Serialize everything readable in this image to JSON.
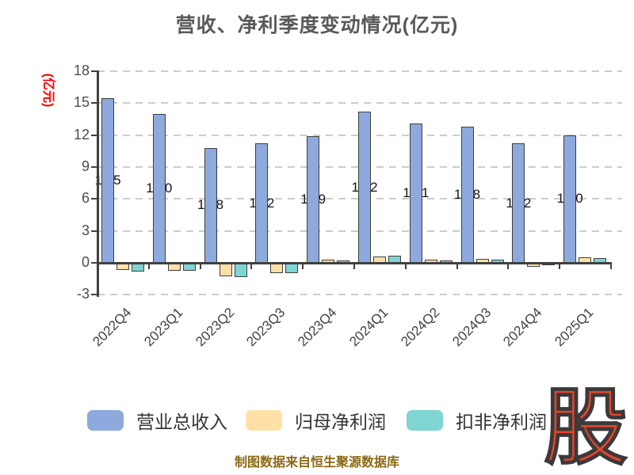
{
  "title": "营收、净利季度变动情况(亿元)",
  "caption": "制图数据来自恒生聚源数据库",
  "watermark": "股",
  "colors": {
    "title_text": "#595959",
    "axis_text": "#4D4D4D",
    "grid": "#CCCCCC",
    "axis_line": "#404040",
    "bar_border": "#3F3F3F",
    "value_label": "#141414",
    "ylabel_red": "#FF0000",
    "caption_text": "#8B6914",
    "watermark_red": "#E9452A",
    "legend_text": "#333333"
  },
  "chart_data": {
    "type": "bar",
    "title": "营收、净利季度变动情况(亿元)",
    "ylabel": "(亿元)",
    "categories": [
      "2022Q4",
      "2023Q1",
      "2023Q2",
      "2023Q3",
      "2023Q4",
      "2024Q1",
      "2024Q2",
      "2024Q3",
      "2024Q4",
      "2025Q1"
    ],
    "series": [
      {
        "name": "营业总收入",
        "color": "#8EA9DB",
        "values": [
          15.5,
          14.0,
          10.8,
          11.2,
          11.9,
          14.2,
          13.1,
          12.8,
          11.2,
          12.0
        ],
        "value_labels": [
          "15.5",
          "14.0",
          "10.8",
          "11.2",
          "11.9",
          "14.2",
          "13.1",
          "12.8",
          "11.2",
          "12.0"
        ]
      },
      {
        "name": "归母净利润",
        "color": "#FFE1A8",
        "values": [
          -0.7,
          -0.75,
          -1.3,
          -1.0,
          0.3,
          0.6,
          0.3,
          0.35,
          -0.4,
          0.5
        ]
      },
      {
        "name": "扣非净利润",
        "color": "#7ED5D2",
        "values": [
          -0.8,
          -0.75,
          -1.35,
          -1.0,
          0.25,
          0.65,
          0.2,
          0.3,
          -0.25,
          0.45
        ]
      }
    ],
    "yticks": [
      18,
      15,
      12,
      9,
      6,
      3,
      0,
      -3
    ],
    "ylim": [
      -3,
      18
    ],
    "grid": "horizontal-dashed",
    "legend_position": "bottom"
  }
}
